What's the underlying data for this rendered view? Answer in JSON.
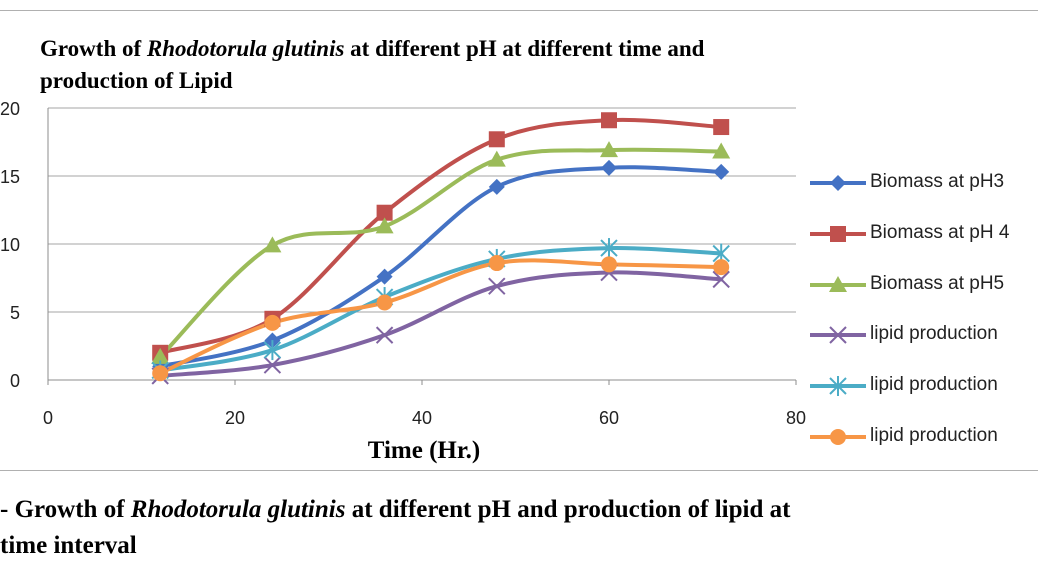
{
  "chart_data": {
    "type": "line",
    "title_parts": [
      "Growth of ",
      "Rhodotorula glutinis",
      " at different pH at different time and",
      "production of Lipid"
    ],
    "xlabel": "Time (Hr.)",
    "ylabel": "",
    "xlim": [
      0,
      80
    ],
    "ylim": [
      0,
      20
    ],
    "x_ticks": [
      "0",
      "20",
      "40",
      "60",
      "80"
    ],
    "y_ticks": [
      "0",
      "5",
      "10",
      "15",
      "20"
    ],
    "grid": "horizontal",
    "legend_position": "right",
    "x": [
      12,
      24,
      36,
      48,
      60,
      72
    ],
    "series": [
      {
        "name": "Biomass at pH3",
        "values": [
          1.0,
          2.9,
          7.6,
          14.2,
          15.6,
          15.3
        ],
        "color": "#4472C4",
        "marker": "diamond"
      },
      {
        "name": "Biomass at pH 4",
        "values": [
          2.0,
          4.5,
          12.3,
          17.7,
          19.1,
          18.6
        ],
        "color": "#C0504D",
        "marker": "square"
      },
      {
        "name": "Biomass at pH5",
        "values": [
          1.7,
          9.9,
          11.3,
          16.2,
          16.9,
          16.8
        ],
        "color": "#9BBB59",
        "marker": "triangle"
      },
      {
        "name": "lipid production",
        "values": [
          0.3,
          1.1,
          3.3,
          6.9,
          7.9,
          7.4
        ],
        "color": "#8064A2",
        "marker": "x"
      },
      {
        "name": "lipid production",
        "values": [
          0.7,
          2.2,
          6.1,
          8.9,
          9.7,
          9.3
        ],
        "color": "#4BACC6",
        "marker": "star"
      },
      {
        "name": "lipid production",
        "values": [
          0.5,
          4.2,
          5.7,
          8.6,
          8.5,
          8.3
        ],
        "color": "#F79646",
        "marker": "circle"
      }
    ]
  },
  "caption": {
    "prefix": "- Growth of ",
    "species": "Rhodotorula glutinis",
    "suffix": " at different pH and production of lipid at",
    "line2": "time interval"
  }
}
